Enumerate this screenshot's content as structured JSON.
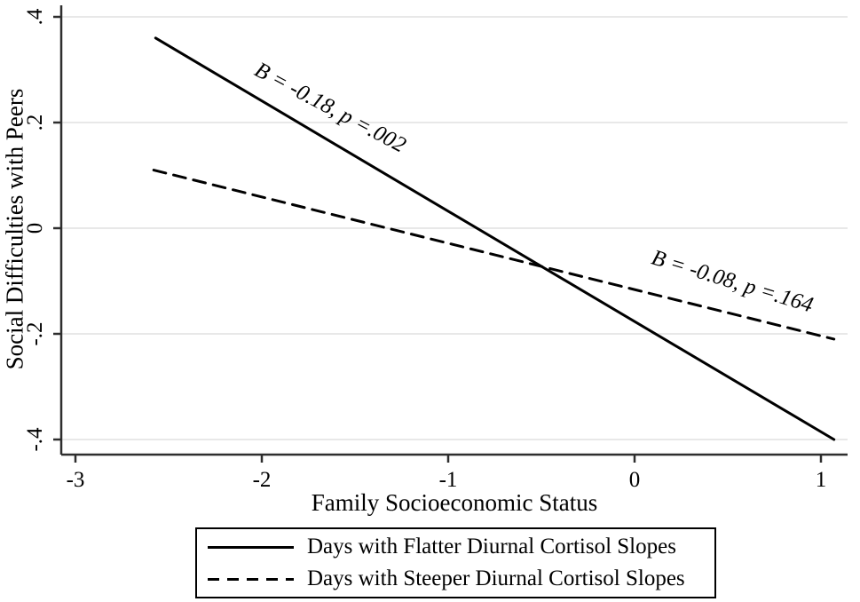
{
  "chart_data": {
    "type": "line",
    "title": "",
    "xlabel": "Family Socioeconomic Status",
    "ylabel": "Social Difficulties with Peers",
    "xlim": [
      -3.08,
      1.15
    ],
    "ylim": [
      -0.43,
      0.42
    ],
    "xticks": {
      "values": [
        -3,
        -2,
        -1,
        0,
        1
      ],
      "labels": [
        "-3",
        "-2",
        "-1",
        "0",
        "1"
      ]
    },
    "yticks": {
      "values": [
        0.4,
        0.2,
        0,
        -0.2,
        -0.4
      ],
      "labels": [
        ".4",
        ".2",
        "0",
        "-.2",
        "-.4"
      ]
    },
    "grid": "horizontal",
    "grid_color": "#e8e8e8",
    "axis_color": "#2e2e2e",
    "line_color": "#000000",
    "series": [
      {
        "name": "Days with Flatter Diurnal Cortisol Slopes",
        "style": "solid",
        "x": [
          -2.57,
          1.07
        ],
        "y": [
          0.36,
          -0.4
        ],
        "annotation": {
          "text": "B = -0.18, p =.002",
          "x": -1.65,
          "y": 0.217,
          "angle": 28
        }
      },
      {
        "name": "Days with Steeper Diurnal Cortisol Slopes",
        "style": "dashed",
        "x": [
          -2.58,
          1.07
        ],
        "y": [
          0.11,
          -0.21
        ],
        "annotation": {
          "text": "B = -0.08, p =.164",
          "x": 0.514,
          "y": -0.113,
          "angle": 17
        }
      }
    ],
    "legend": {
      "position": "bottom-center",
      "border": true
    }
  }
}
